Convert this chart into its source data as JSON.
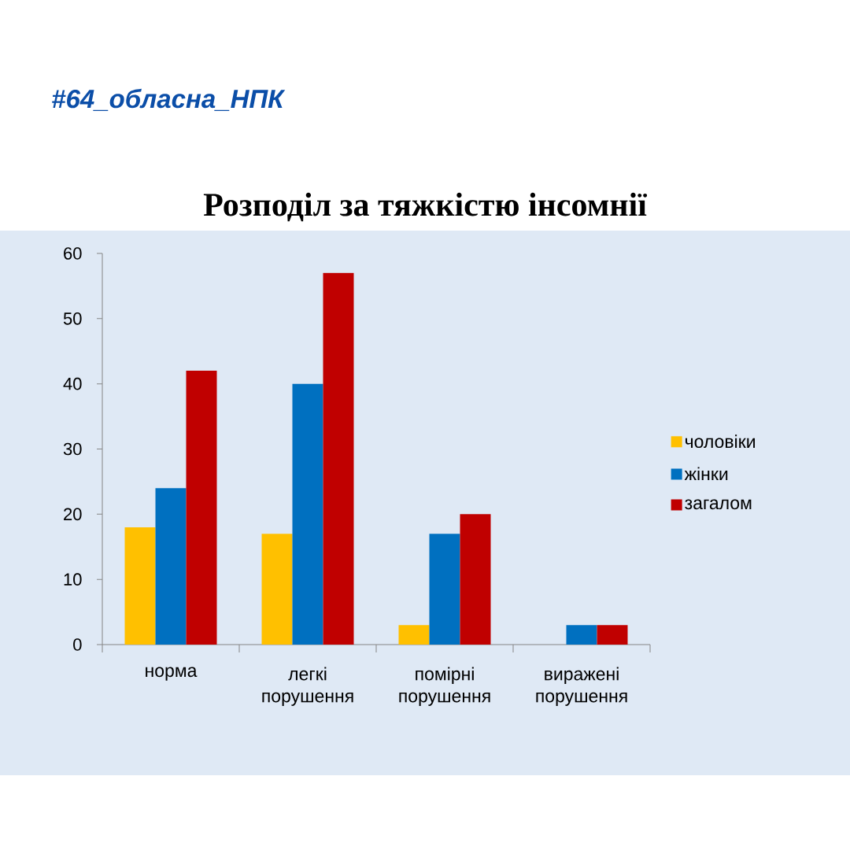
{
  "chart_data": {
    "type": "bar",
    "title": "Розподіл за тяжкістю інсомнії",
    "annotations": [
      "#64_обласна_НПК"
    ],
    "categories": [
      "норма",
      "легкі порушення",
      "помірні порушення",
      "виражені порушення"
    ],
    "series": [
      {
        "name": "чоловіки",
        "color": "#ffc000",
        "values": [
          18,
          17,
          3,
          0
        ]
      },
      {
        "name": "жінки",
        "color": "#0070c0",
        "values": [
          24,
          40,
          17,
          3
        ]
      },
      {
        "name": "загалом",
        "color": "#c00000",
        "values": [
          42,
          57,
          20,
          3
        ]
      }
    ],
    "ylim": [
      0,
      60
    ],
    "yticks": [
      0,
      10,
      20,
      30,
      40,
      50,
      60
    ],
    "legend": "right"
  }
}
